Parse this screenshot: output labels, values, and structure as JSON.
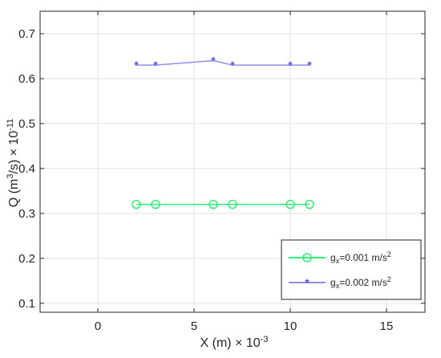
{
  "chart_data": {
    "type": "line",
    "title": "",
    "xlabel": "X (m) × 10",
    "xlabel_exponent": "-3",
    "ylabel_base": "Q (m",
    "ylabel_unit_power": "3",
    "ylabel_mid": "/s) × 10",
    "ylabel_exponent": "-11",
    "xlim": [
      -3,
      17
    ],
    "ylim": [
      0.08,
      0.75
    ],
    "xticks": [
      0,
      5,
      10,
      15
    ],
    "yticks": [
      0.1,
      0.2,
      0.3,
      0.4,
      0.5,
      0.6,
      0.7
    ],
    "grid": true,
    "legend_position": "bottom-right",
    "series": [
      {
        "name_base": "g",
        "name_sub": "x",
        "name_mid": "=0.001 m/s",
        "name_sup": "2",
        "color": "#33ee77",
        "marker": "circle",
        "x": [
          2,
          3,
          6,
          7,
          10,
          11
        ],
        "y": [
          0.32,
          0.32,
          0.32,
          0.32,
          0.32,
          0.32
        ]
      },
      {
        "name_base": "g",
        "name_sub": "x",
        "name_mid": "=0.002 m/s",
        "name_sup": "2",
        "color": "#5555ee",
        "line_color": "#8f8ff2",
        "marker": "star",
        "x": [
          2,
          3,
          6,
          7,
          10,
          11
        ],
        "y": [
          0.63,
          0.63,
          0.64,
          0.63,
          0.63,
          0.63
        ]
      }
    ]
  }
}
